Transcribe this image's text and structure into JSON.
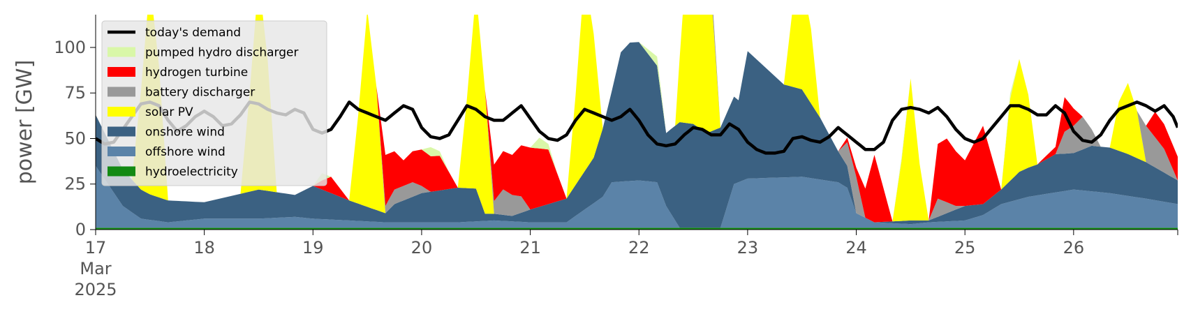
{
  "chart_data": {
    "type": "area",
    "title": "",
    "ylabel": "power [GW]",
    "xlabel": "",
    "ylim": [
      0,
      118
    ],
    "xlim": [
      0,
      239
    ],
    "y_ticks": [
      0,
      25,
      50,
      75,
      100
    ],
    "x_ticks": [
      {
        "x": 0,
        "label": "17",
        "sub1": "Mar",
        "sub2": "2025"
      },
      {
        "x": 24,
        "label": "18"
      },
      {
        "x": 48,
        "label": "19"
      },
      {
        "x": 72,
        "label": "20"
      },
      {
        "x": 96,
        "label": "21"
      },
      {
        "x": 120,
        "label": "22"
      },
      {
        "x": 144,
        "label": "23"
      },
      {
        "x": 168,
        "label": "24"
      },
      {
        "x": 192,
        "label": "25"
      },
      {
        "x": 216,
        "label": "26"
      }
    ],
    "x_unit": "hours since 17 Mar 2025 00:00",
    "grid": false,
    "legend_position": "upper-left",
    "colors": {
      "today's demand": "#000000",
      "pumped hydro discharger": "#d9f7a8",
      "hydrogen turbine": "#ff0000",
      "battery discharger": "#999999",
      "solar PV": "#ffff00",
      "onshore wind": "#3b6182",
      "offshore wind": "#5b83a8",
      "hydroelectricity": "#138a13"
    },
    "legend": [
      {
        "name": "today's demand",
        "kind": "line"
      },
      {
        "name": "pumped hydro discharger",
        "kind": "patch"
      },
      {
        "name": "hydrogen turbine",
        "kind": "patch"
      },
      {
        "name": "battery discharger",
        "kind": "patch"
      },
      {
        "name": "solar PV",
        "kind": "patch"
      },
      {
        "name": "onshore wind",
        "kind": "patch"
      },
      {
        "name": "offshore wind",
        "kind": "patch"
      },
      {
        "name": "hydroelectricity",
        "kind": "patch"
      }
    ],
    "stack_order": [
      "hydroelectricity",
      "offshore wind",
      "onshore wind",
      "solar PV",
      "battery discharger",
      "hydrogen turbine",
      "pumped hydro discharger"
    ],
    "series_anchors": {
      "hydroelectricity": [
        [
          0,
          1
        ],
        [
          239,
          1
        ]
      ],
      "offshore wind": [
        [
          0,
          34
        ],
        [
          6,
          12
        ],
        [
          10,
          5
        ],
        [
          16,
          3
        ],
        [
          24,
          5
        ],
        [
          36,
          5
        ],
        [
          44,
          6
        ],
        [
          48,
          5
        ],
        [
          56,
          4
        ],
        [
          64,
          3
        ],
        [
          72,
          3
        ],
        [
          80,
          3
        ],
        [
          88,
          4
        ],
        [
          96,
          3
        ],
        [
          104,
          3
        ],
        [
          112,
          17
        ],
        [
          114,
          25
        ],
        [
          120,
          26
        ],
        [
          124,
          25
        ],
        [
          126,
          12
        ],
        [
          129,
          0
        ],
        [
          132,
          0
        ],
        [
          135,
          0
        ],
        [
          138,
          0
        ],
        [
          141,
          24
        ],
        [
          144,
          27
        ],
        [
          156,
          28
        ],
        [
          164,
          25
        ],
        [
          166,
          22
        ],
        [
          168,
          8
        ],
        [
          172,
          3
        ],
        [
          180,
          2
        ],
        [
          184,
          3
        ],
        [
          192,
          4
        ],
        [
          196,
          7
        ],
        [
          200,
          13
        ],
        [
          206,
          17
        ],
        [
          216,
          21
        ],
        [
          224,
          19
        ],
        [
          232,
          16
        ],
        [
          239,
          13
        ]
      ],
      "onshore wind": [
        [
          0,
          28
        ],
        [
          6,
          20
        ],
        [
          12,
          14
        ],
        [
          16,
          12
        ],
        [
          24,
          9
        ],
        [
          36,
          16
        ],
        [
          44,
          12
        ],
        [
          48,
          18
        ],
        [
          56,
          11
        ],
        [
          64,
          5
        ],
        [
          66,
          10
        ],
        [
          72,
          16
        ],
        [
          80,
          19
        ],
        [
          84,
          18
        ],
        [
          86,
          4
        ],
        [
          92,
          3
        ],
        [
          96,
          7
        ],
        [
          104,
          13
        ],
        [
          110,
          25
        ],
        [
          114,
          50
        ],
        [
          116,
          71
        ],
        [
          118,
          76
        ],
        [
          120,
          76
        ],
        [
          124,
          64
        ],
        [
          126,
          40
        ],
        [
          129,
          58
        ],
        [
          132,
          57
        ],
        [
          135,
          52
        ],
        [
          138,
          55
        ],
        [
          141,
          48
        ],
        [
          142,
          45
        ],
        [
          144,
          70
        ],
        [
          152,
          51
        ],
        [
          156,
          48
        ],
        [
          160,
          34
        ],
        [
          164,
          17
        ],
        [
          166,
          12
        ],
        [
          168,
          0
        ],
        [
          172,
          0
        ],
        [
          180,
          2
        ],
        [
          184,
          1
        ],
        [
          192,
          8
        ],
        [
          196,
          6
        ],
        [
          200,
          8
        ],
        [
          204,
          15
        ],
        [
          208,
          17
        ],
        [
          212,
          21
        ],
        [
          216,
          20
        ],
        [
          220,
          25
        ],
        [
          224,
          25
        ],
        [
          228,
          23
        ],
        [
          232,
          20
        ],
        [
          239,
          13
        ]
      ],
      "solar PV": [
        [
          0,
          0
        ],
        [
          8,
          0
        ],
        [
          10,
          54
        ],
        [
          12,
          116
        ],
        [
          14,
          72
        ],
        [
          16,
          0
        ],
        [
          32,
          0
        ],
        [
          34,
          54
        ],
        [
          36,
          116
        ],
        [
          38,
          72
        ],
        [
          40,
          0
        ],
        [
          56,
          0
        ],
        [
          58,
          49
        ],
        [
          60,
          108
        ],
        [
          62,
          68
        ],
        [
          64,
          0
        ],
        [
          80,
          0
        ],
        [
          82,
          49
        ],
        [
          84,
          108
        ],
        [
          86,
          68
        ],
        [
          88,
          0
        ],
        [
          104,
          0
        ],
        [
          106,
          49
        ],
        [
          108,
          108
        ],
        [
          110,
          68
        ],
        [
          112,
          0
        ],
        [
          128,
          0
        ],
        [
          130,
          71
        ],
        [
          132,
          71
        ],
        [
          134,
          71
        ],
        [
          136,
          74
        ],
        [
          138,
          0
        ],
        [
          152,
          0
        ],
        [
          154,
          44
        ],
        [
          156,
          60
        ],
        [
          158,
          41
        ],
        [
          160,
          0
        ],
        [
          176,
          0
        ],
        [
          178,
          33
        ],
        [
          180,
          78
        ],
        [
          182,
          31
        ],
        [
          184,
          0
        ],
        [
          200,
          0
        ],
        [
          202,
          45
        ],
        [
          204,
          62
        ],
        [
          206,
          40
        ],
        [
          208,
          0
        ],
        [
          224,
          0
        ],
        [
          226,
          27
        ],
        [
          228,
          39
        ],
        [
          230,
          26
        ],
        [
          232,
          0
        ],
        [
          239,
          0
        ]
      ],
      "battery discharger": [
        [
          0,
          0
        ],
        [
          62,
          0
        ],
        [
          66,
          8
        ],
        [
          70,
          8
        ],
        [
          74,
          0
        ],
        [
          86,
          0
        ],
        [
          90,
          14
        ],
        [
          94,
          9
        ],
        [
          96,
          0
        ],
        [
          126,
          0
        ],
        [
          130,
          0
        ],
        [
          134,
          15
        ],
        [
          138,
          0
        ],
        [
          164,
          0
        ],
        [
          166,
          13
        ],
        [
          168,
          20
        ],
        [
          170,
          0
        ],
        [
          184,
          0
        ],
        [
          186,
          10
        ],
        [
          190,
          2
        ],
        [
          192,
          0
        ],
        [
          208,
          0
        ],
        [
          212,
          0
        ],
        [
          214,
          12
        ],
        [
          218,
          18
        ],
        [
          222,
          0
        ],
        [
          230,
          0
        ],
        [
          232,
          20
        ],
        [
          236,
          13
        ],
        [
          239,
          0
        ]
      ],
      "hydrogen turbine": [
        [
          0,
          0
        ],
        [
          48,
          0
        ],
        [
          50,
          5
        ],
        [
          52,
          9
        ],
        [
          56,
          0
        ],
        [
          62,
          0
        ],
        [
          64,
          28
        ],
        [
          68,
          14
        ],
        [
          72,
          20
        ],
        [
          76,
          19
        ],
        [
          80,
          0
        ],
        [
          86,
          0
        ],
        [
          88,
          20
        ],
        [
          92,
          22
        ],
        [
          96,
          34
        ],
        [
          100,
          30
        ],
        [
          104,
          0
        ],
        [
          164,
          0
        ],
        [
          168,
          5
        ],
        [
          170,
          16
        ],
        [
          172,
          37
        ],
        [
          176,
          0
        ],
        [
          184,
          0
        ],
        [
          186,
          30
        ],
        [
          188,
          35
        ],
        [
          192,
          25
        ],
        [
          196,
          43
        ],
        [
          200,
          0
        ],
        [
          208,
          0
        ],
        [
          212,
          4
        ],
        [
          214,
          19
        ],
        [
          218,
          0
        ],
        [
          232,
          0
        ],
        [
          234,
          14
        ],
        [
          239,
          13
        ]
      ],
      "pumped hydro discharger": [
        [
          0,
          0
        ],
        [
          48,
          0
        ],
        [
          50,
          4
        ],
        [
          52,
          0
        ],
        [
          72,
          0
        ],
        [
          74,
          5
        ],
        [
          78,
          0
        ],
        [
          96,
          0
        ],
        [
          98,
          6
        ],
        [
          102,
          0
        ],
        [
          120,
          0
        ],
        [
          124,
          5
        ],
        [
          126,
          0
        ],
        [
          130,
          0
        ],
        [
          134,
          3
        ],
        [
          136,
          0
        ],
        [
          176,
          0
        ],
        [
          178,
          2
        ],
        [
          180,
          0
        ],
        [
          200,
          0
        ],
        [
          202,
          3
        ],
        [
          204,
          0
        ],
        [
          239,
          0
        ]
      ],
      "today's demand": [
        [
          0,
          50
        ],
        [
          2,
          47
        ],
        [
          4,
          48
        ],
        [
          6,
          55
        ],
        [
          8,
          62
        ],
        [
          10,
          69
        ],
        [
          12,
          70
        ],
        [
          14,
          68
        ],
        [
          16,
          60
        ],
        [
          18,
          54
        ],
        [
          20,
          57
        ],
        [
          22,
          62
        ],
        [
          24,
          65
        ],
        [
          26,
          62
        ],
        [
          28,
          57
        ],
        [
          30,
          58
        ],
        [
          32,
          63
        ],
        [
          34,
          70
        ],
        [
          36,
          69
        ],
        [
          38,
          66
        ],
        [
          40,
          64
        ],
        [
          42,
          63
        ],
        [
          44,
          66
        ],
        [
          46,
          64
        ],
        [
          48,
          55
        ],
        [
          50,
          53
        ],
        [
          52,
          55
        ],
        [
          54,
          62
        ],
        [
          56,
          70
        ],
        [
          58,
          66
        ],
        [
          60,
          64
        ],
        [
          62,
          62
        ],
        [
          64,
          60
        ],
        [
          66,
          64
        ],
        [
          68,
          68
        ],
        [
          70,
          66
        ],
        [
          72,
          56
        ],
        [
          74,
          51
        ],
        [
          76,
          50
        ],
        [
          78,
          52
        ],
        [
          80,
          60
        ],
        [
          82,
          68
        ],
        [
          84,
          66
        ],
        [
          86,
          62
        ],
        [
          88,
          60
        ],
        [
          90,
          60
        ],
        [
          92,
          64
        ],
        [
          94,
          68
        ],
        [
          96,
          61
        ],
        [
          98,
          54
        ],
        [
          100,
          50
        ],
        [
          102,
          49
        ],
        [
          104,
          52
        ],
        [
          106,
          60
        ],
        [
          108,
          66
        ],
        [
          110,
          64
        ],
        [
          112,
          62
        ],
        [
          114,
          60
        ],
        [
          116,
          62
        ],
        [
          118,
          66
        ],
        [
          120,
          60
        ],
        [
          122,
          52
        ],
        [
          124,
          47
        ],
        [
          126,
          46
        ],
        [
          128,
          47
        ],
        [
          130,
          52
        ],
        [
          132,
          56
        ],
        [
          134,
          55
        ],
        [
          136,
          52
        ],
        [
          138,
          52
        ],
        [
          140,
          58
        ],
        [
          142,
          55
        ],
        [
          144,
          48
        ],
        [
          146,
          44
        ],
        [
          148,
          42
        ],
        [
          150,
          42
        ],
        [
          152,
          43
        ],
        [
          154,
          50
        ],
        [
          156,
          51
        ],
        [
          158,
          49
        ],
        [
          160,
          48
        ],
        [
          162,
          51
        ],
        [
          164,
          56
        ],
        [
          166,
          52
        ],
        [
          168,
          48
        ],
        [
          170,
          44
        ],
        [
          172,
          44
        ],
        [
          174,
          48
        ],
        [
          176,
          60
        ],
        [
          178,
          66
        ],
        [
          180,
          67
        ],
        [
          182,
          66
        ],
        [
          184,
          64
        ],
        [
          186,
          67
        ],
        [
          188,
          62
        ],
        [
          190,
          55
        ],
        [
          192,
          50
        ],
        [
          194,
          48
        ],
        [
          196,
          50
        ],
        [
          198,
          56
        ],
        [
          200,
          62
        ],
        [
          202,
          68
        ],
        [
          204,
          68
        ],
        [
          206,
          66
        ],
        [
          208,
          63
        ],
        [
          210,
          63
        ],
        [
          212,
          68
        ],
        [
          214,
          64
        ],
        [
          216,
          54
        ],
        [
          218,
          49
        ],
        [
          220,
          48
        ],
        [
          222,
          52
        ],
        [
          224,
          60
        ],
        [
          226,
          66
        ],
        [
          228,
          68
        ],
        [
          230,
          70
        ],
        [
          232,
          68
        ],
        [
          234,
          65
        ],
        [
          236,
          68
        ],
        [
          238,
          62
        ],
        [
          239,
          56
        ]
      ]
    }
  }
}
